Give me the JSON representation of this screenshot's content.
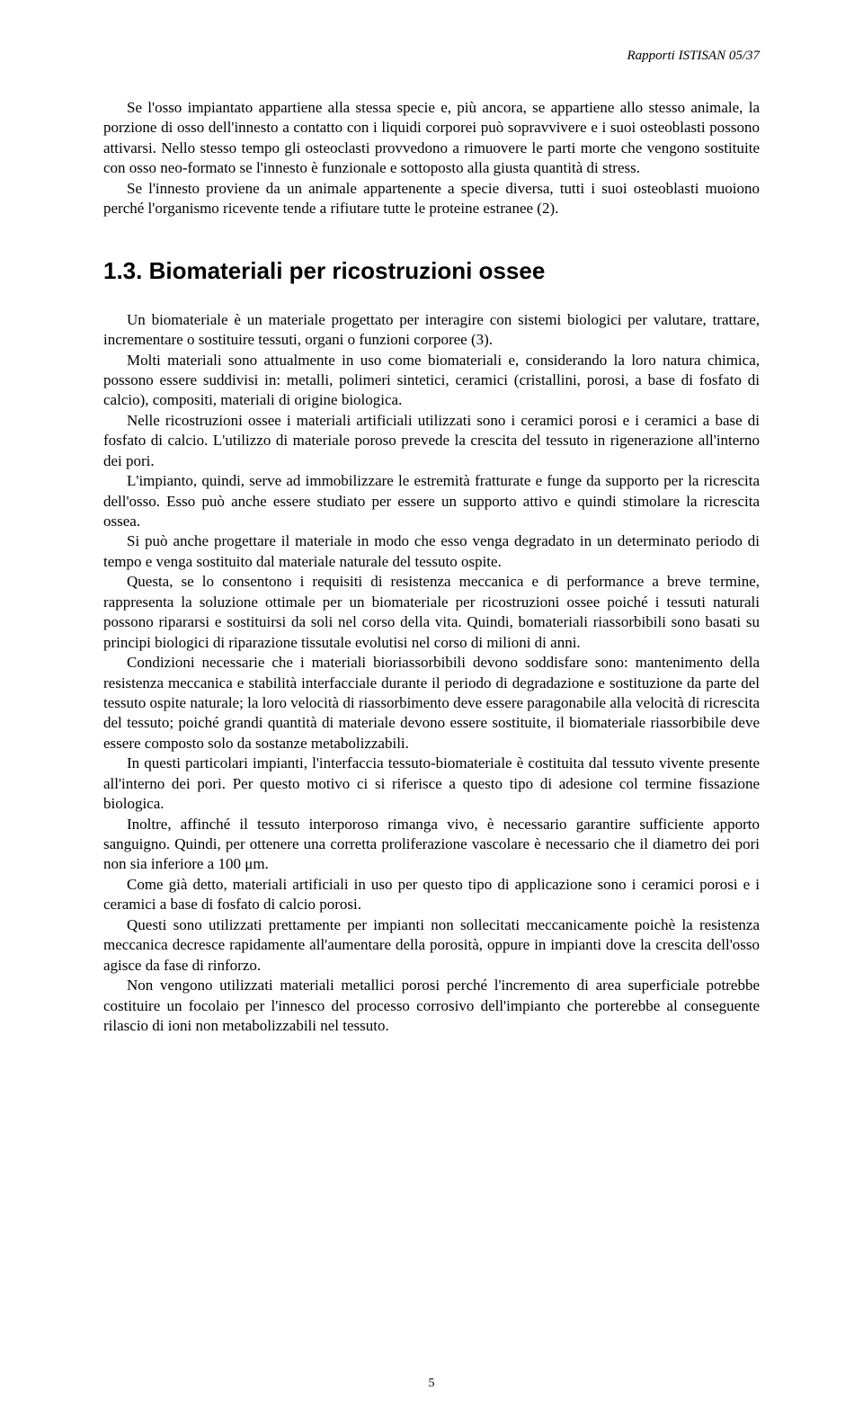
{
  "header": "Rapporti ISTISAN 05/37",
  "intro": {
    "p1": "Se l'osso impiantato appartiene alla stessa specie e, più ancora, se appartiene allo stesso animale, la porzione di osso dell'innesto a contatto con i liquidi corporei può sopravvivere e i suoi osteoblasti possono attivarsi. Nello stesso tempo gli osteoclasti provvedono a rimuovere le parti morte che vengono sostituite con osso neo-formato se l'innesto è funzionale e sottoposto alla giusta quantità di stress.",
    "p2": "Se l'innesto proviene da un animale appartenente a specie diversa, tutti i suoi osteoblasti muoiono perché l'organismo ricevente tende a rifiutare tutte le proteine estranee (2)."
  },
  "section": {
    "title": "1.3. Biomateriali per ricostruzioni ossee",
    "p1": "Un biomateriale è un materiale progettato per interagire con sistemi biologici per valutare, trattare, incrementare o sostituire tessuti, organi o funzioni corporee (3).",
    "p2": "Molti materiali sono attualmente in uso come biomateriali e, considerando la loro natura chimica, possono essere suddivisi in: metalli, polimeri sintetici, ceramici (cristallini, porosi, a base di fosfato di calcio), compositi, materiali di origine biologica.",
    "p3": "Nelle ricostruzioni ossee i materiali artificiali utilizzati sono i ceramici porosi e i ceramici a base di fosfato di calcio. L'utilizzo di materiale poroso prevede la crescita del tessuto in rigenerazione all'interno dei pori.",
    "p4": "L'impianto, quindi, serve ad immobilizzare le estremità fratturate e funge da supporto per la ricrescita dell'osso. Esso può anche essere studiato per essere un supporto attivo e quindi stimolare la ricrescita ossea.",
    "p5": "Si può anche progettare il materiale in modo che esso venga degradato in un determinato periodo di tempo e venga sostituito dal materiale naturale del tessuto ospite.",
    "p6": "Questa, se lo consentono i requisiti di resistenza meccanica e di performance a breve termine, rappresenta la soluzione ottimale per un biomateriale per ricostruzioni ossee poiché i tessuti naturali possono ripararsi e sostituirsi da soli nel corso della vita. Quindi, bomateriali riassorbibili sono basati su principi biologici di riparazione tissutale evolutisi nel corso di milioni di anni.",
    "p7": "Condizioni necessarie che i materiali bioriassorbibili devono soddisfare sono: mantenimento della resistenza meccanica e stabilità interfacciale durante il periodo di degradazione e sostituzione da parte del tessuto ospite naturale; la loro velocità di riassorbimento deve essere paragonabile alla velocità di ricrescita del tessuto; poiché grandi quantità di materiale devono essere sostituite, il biomateriale riassorbibile deve essere composto solo da sostanze metabolizzabili.",
    "p8": "In questi particolari impianti, l'interfaccia tessuto-biomateriale è costituita dal tessuto vivente presente all'interno dei pori. Per questo motivo ci si riferisce a questo tipo di adesione col termine fissazione biologica.",
    "p9": "Inoltre, affinché il tessuto interporoso rimanga vivo, è necessario garantire sufficiente apporto sanguigno. Quindi, per ottenere una corretta proliferazione vascolare è necessario che il diametro dei pori non sia inferiore a 100 μm.",
    "p10": "Come già detto, materiali artificiali in uso per questo tipo di applicazione sono i ceramici porosi e i ceramici a base di fosfato di calcio porosi.",
    "p11": "Questi sono utilizzati prettamente per impianti non sollecitati meccanicamente poichè la resistenza meccanica decresce rapidamente all'aumentare della porosità, oppure in impianti dove la crescita dell'osso agisce da fase di rinforzo.",
    "p12": "Non vengono utilizzati materiali metallici porosi perché l'incremento di area superficiale potrebbe costituire un focolaio per l'innesco del processo corrosivo dell'impianto che porterebbe al conseguente rilascio di ioni non metabolizzabili nel tessuto."
  },
  "pageNumber": "5"
}
